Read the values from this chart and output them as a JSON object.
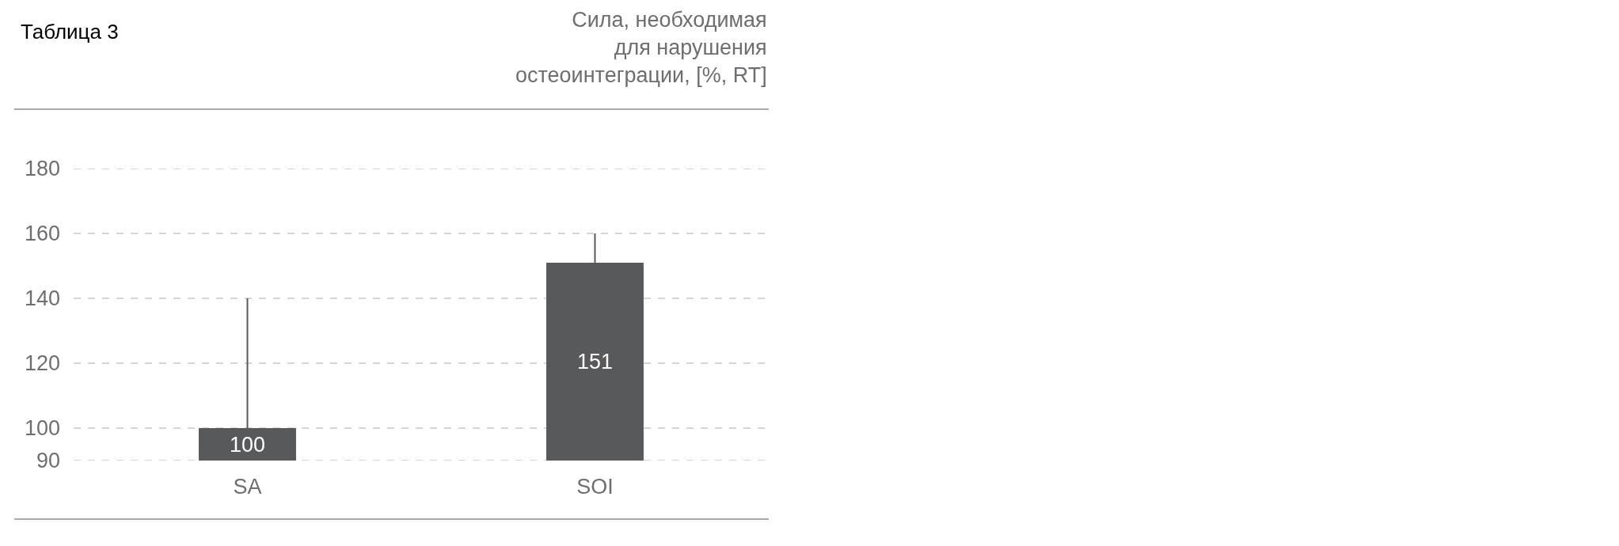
{
  "chart_data": {
    "type": "bar",
    "title": "Таблица 3",
    "ylabel": "Сила, необходимая\nдля нарушения\nостеоинтеграции, [%, RT]",
    "categories": [
      "SA",
      "SOI"
    ],
    "values": [
      100,
      151
    ],
    "color": "#58595b",
    "errors": [
      [
        100,
        140
      ],
      [
        151,
        160
      ]
    ],
    "ylim": [
      90,
      180
    ],
    "yticks": [
      90,
      100,
      120,
      140,
      160,
      180
    ],
    "grid": "y",
    "data_labels": true
  }
}
